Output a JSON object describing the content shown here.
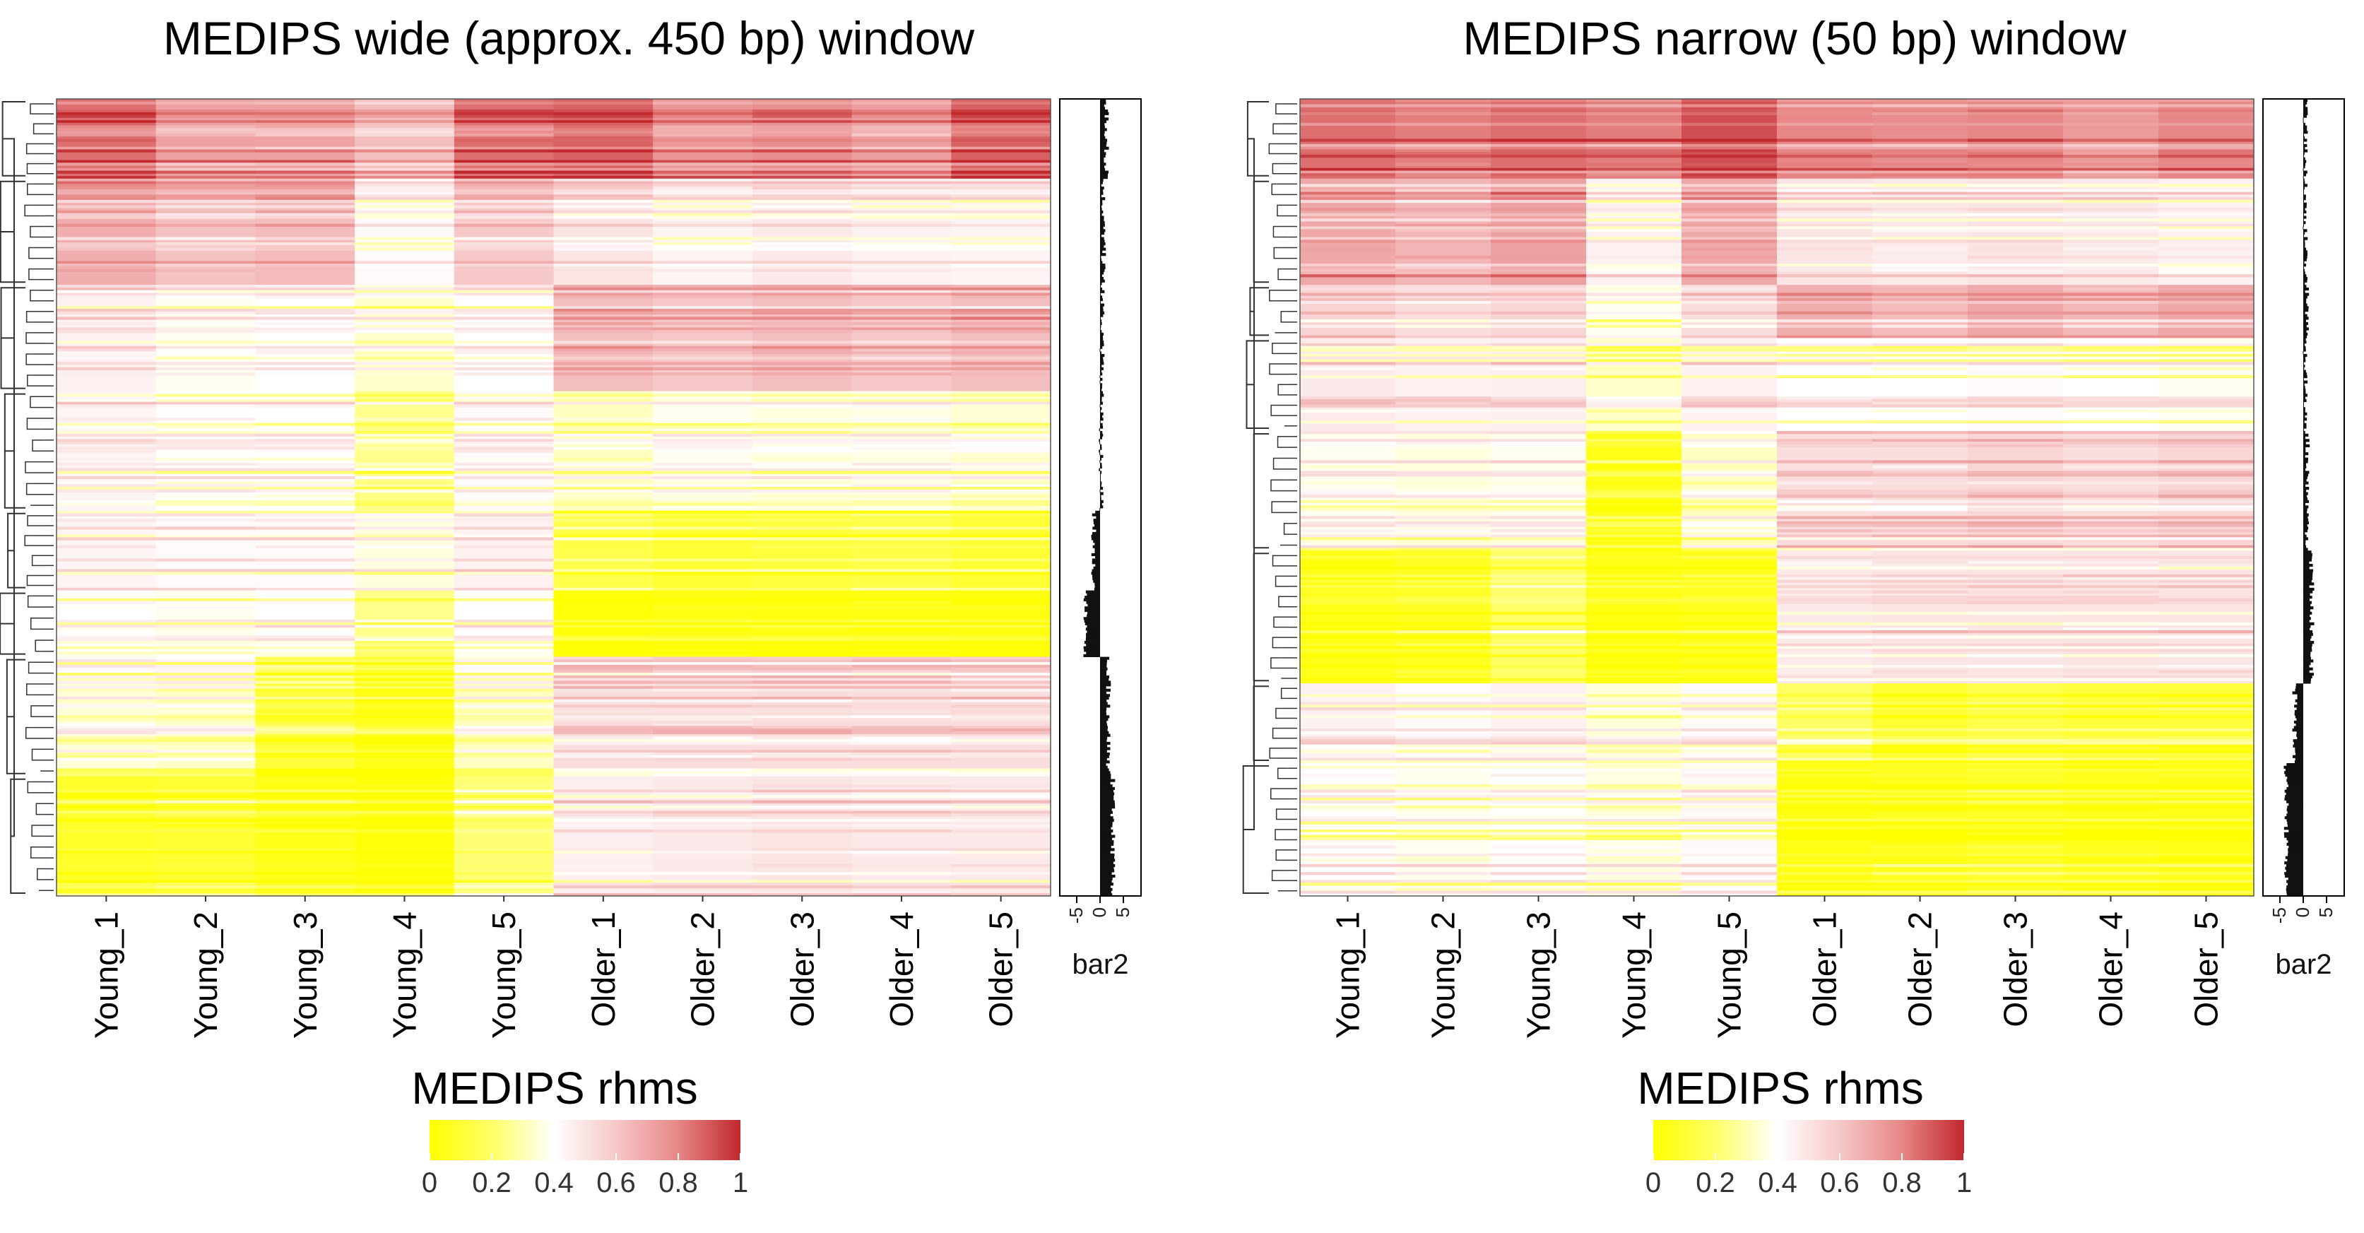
{
  "chart_data": [
    {
      "type": "heatmap",
      "title": "MEDIPS wide (approx. 450 bp) window",
      "columns": [
        "Young_1",
        "Young_2",
        "Young_3",
        "Young_4",
        "Young_5",
        "Older_1",
        "Older_2",
        "Older_3",
        "Older_4",
        "Older_5"
      ],
      "row_blocks": [
        {
          "rows": 30,
          "values": [
            0.85,
            0.72,
            0.72,
            0.63,
            0.85,
            0.88,
            0.75,
            0.78,
            0.73,
            0.88
          ]
        },
        {
          "rows": 40,
          "values": [
            0.68,
            0.62,
            0.64,
            0.42,
            0.6,
            0.5,
            0.44,
            0.48,
            0.45,
            0.44
          ]
        },
        {
          "rows": 40,
          "values": [
            0.45,
            0.38,
            0.4,
            0.33,
            0.4,
            0.63,
            0.6,
            0.63,
            0.6,
            0.63
          ]
        },
        {
          "rows": 45,
          "values": [
            0.44,
            0.4,
            0.4,
            0.25,
            0.42,
            0.32,
            0.38,
            0.36,
            0.37,
            0.34
          ]
        },
        {
          "rows": 30,
          "values": [
            0.44,
            0.42,
            0.42,
            0.36,
            0.45,
            0.15,
            0.1,
            0.12,
            0.14,
            0.1
          ]
        },
        {
          "rows": 25,
          "values": [
            0.4,
            0.38,
            0.4,
            0.25,
            0.4,
            0.02,
            0.04,
            0.03,
            0.04,
            0.03
          ]
        },
        {
          "rows": 45,
          "values": [
            0.35,
            0.33,
            0.12,
            0.05,
            0.32,
            0.52,
            0.52,
            0.52,
            0.52,
            0.52
          ]
        },
        {
          "rows": 45,
          "values": [
            0.08,
            0.1,
            0.05,
            0.02,
            0.22,
            0.46,
            0.48,
            0.5,
            0.48,
            0.48
          ]
        }
      ],
      "side_bar": {
        "label": "bar2",
        "ticks": [
          -5,
          0,
          5
        ],
        "block_means": [
          1.5,
          0.8,
          0.5,
          0.3,
          -1.5,
          -3.5,
          2.0,
          3.0
        ]
      },
      "colorbar": {
        "title": "MEDIPS rhms",
        "ticks": [
          "0",
          "0.2",
          "0.4",
          "0.6",
          "0.8",
          "1"
        ],
        "range": [
          0,
          1
        ]
      }
    },
    {
      "type": "heatmap",
      "title": "MEDIPS narrow (50 bp) window",
      "columns": [
        "Young_1",
        "Young_2",
        "Young_3",
        "Young_4",
        "Young_5",
        "Older_1",
        "Older_2",
        "Older_3",
        "Older_4",
        "Older_5"
      ],
      "row_blocks": [
        {
          "rows": 30,
          "values": [
            0.85,
            0.82,
            0.85,
            0.82,
            0.92,
            0.8,
            0.78,
            0.8,
            0.74,
            0.8
          ]
        },
        {
          "rows": 40,
          "values": [
            0.7,
            0.66,
            0.72,
            0.45,
            0.7,
            0.5,
            0.48,
            0.5,
            0.48,
            0.45
          ]
        },
        {
          "rows": 20,
          "values": [
            0.56,
            0.52,
            0.55,
            0.38,
            0.52,
            0.68,
            0.64,
            0.7,
            0.65,
            0.7
          ]
        },
        {
          "rows": 35,
          "values": [
            0.48,
            0.45,
            0.46,
            0.33,
            0.45,
            0.4,
            0.4,
            0.42,
            0.4,
            0.38
          ]
        },
        {
          "rows": 45,
          "values": [
            0.38,
            0.36,
            0.38,
            0.05,
            0.32,
            0.52,
            0.52,
            0.55,
            0.52,
            0.55
          ]
        },
        {
          "rows": 50,
          "values": [
            0.05,
            0.07,
            0.2,
            0.04,
            0.06,
            0.48,
            0.5,
            0.5,
            0.5,
            0.5
          ]
        },
        {
          "rows": 30,
          "values": [
            0.45,
            0.42,
            0.45,
            0.35,
            0.42,
            0.2,
            0.1,
            0.15,
            0.12,
            0.12
          ]
        },
        {
          "rows": 50,
          "values": [
            0.4,
            0.38,
            0.4,
            0.36,
            0.42,
            0.04,
            0.06,
            0.08,
            0.06,
            0.05
          ]
        }
      ],
      "side_bar": {
        "label": "bar2",
        "ticks": [
          -5,
          0,
          5
        ],
        "block_means": [
          0.5,
          0.5,
          0.8,
          0.5,
          1.0,
          2.0,
          -2.0,
          -4.0
        ]
      },
      "colorbar": {
        "title": "MEDIPS rhms",
        "ticks": [
          "0",
          "0.2",
          "0.4",
          "0.6",
          "0.8",
          "1"
        ],
        "range": [
          0,
          1
        ]
      }
    }
  ]
}
